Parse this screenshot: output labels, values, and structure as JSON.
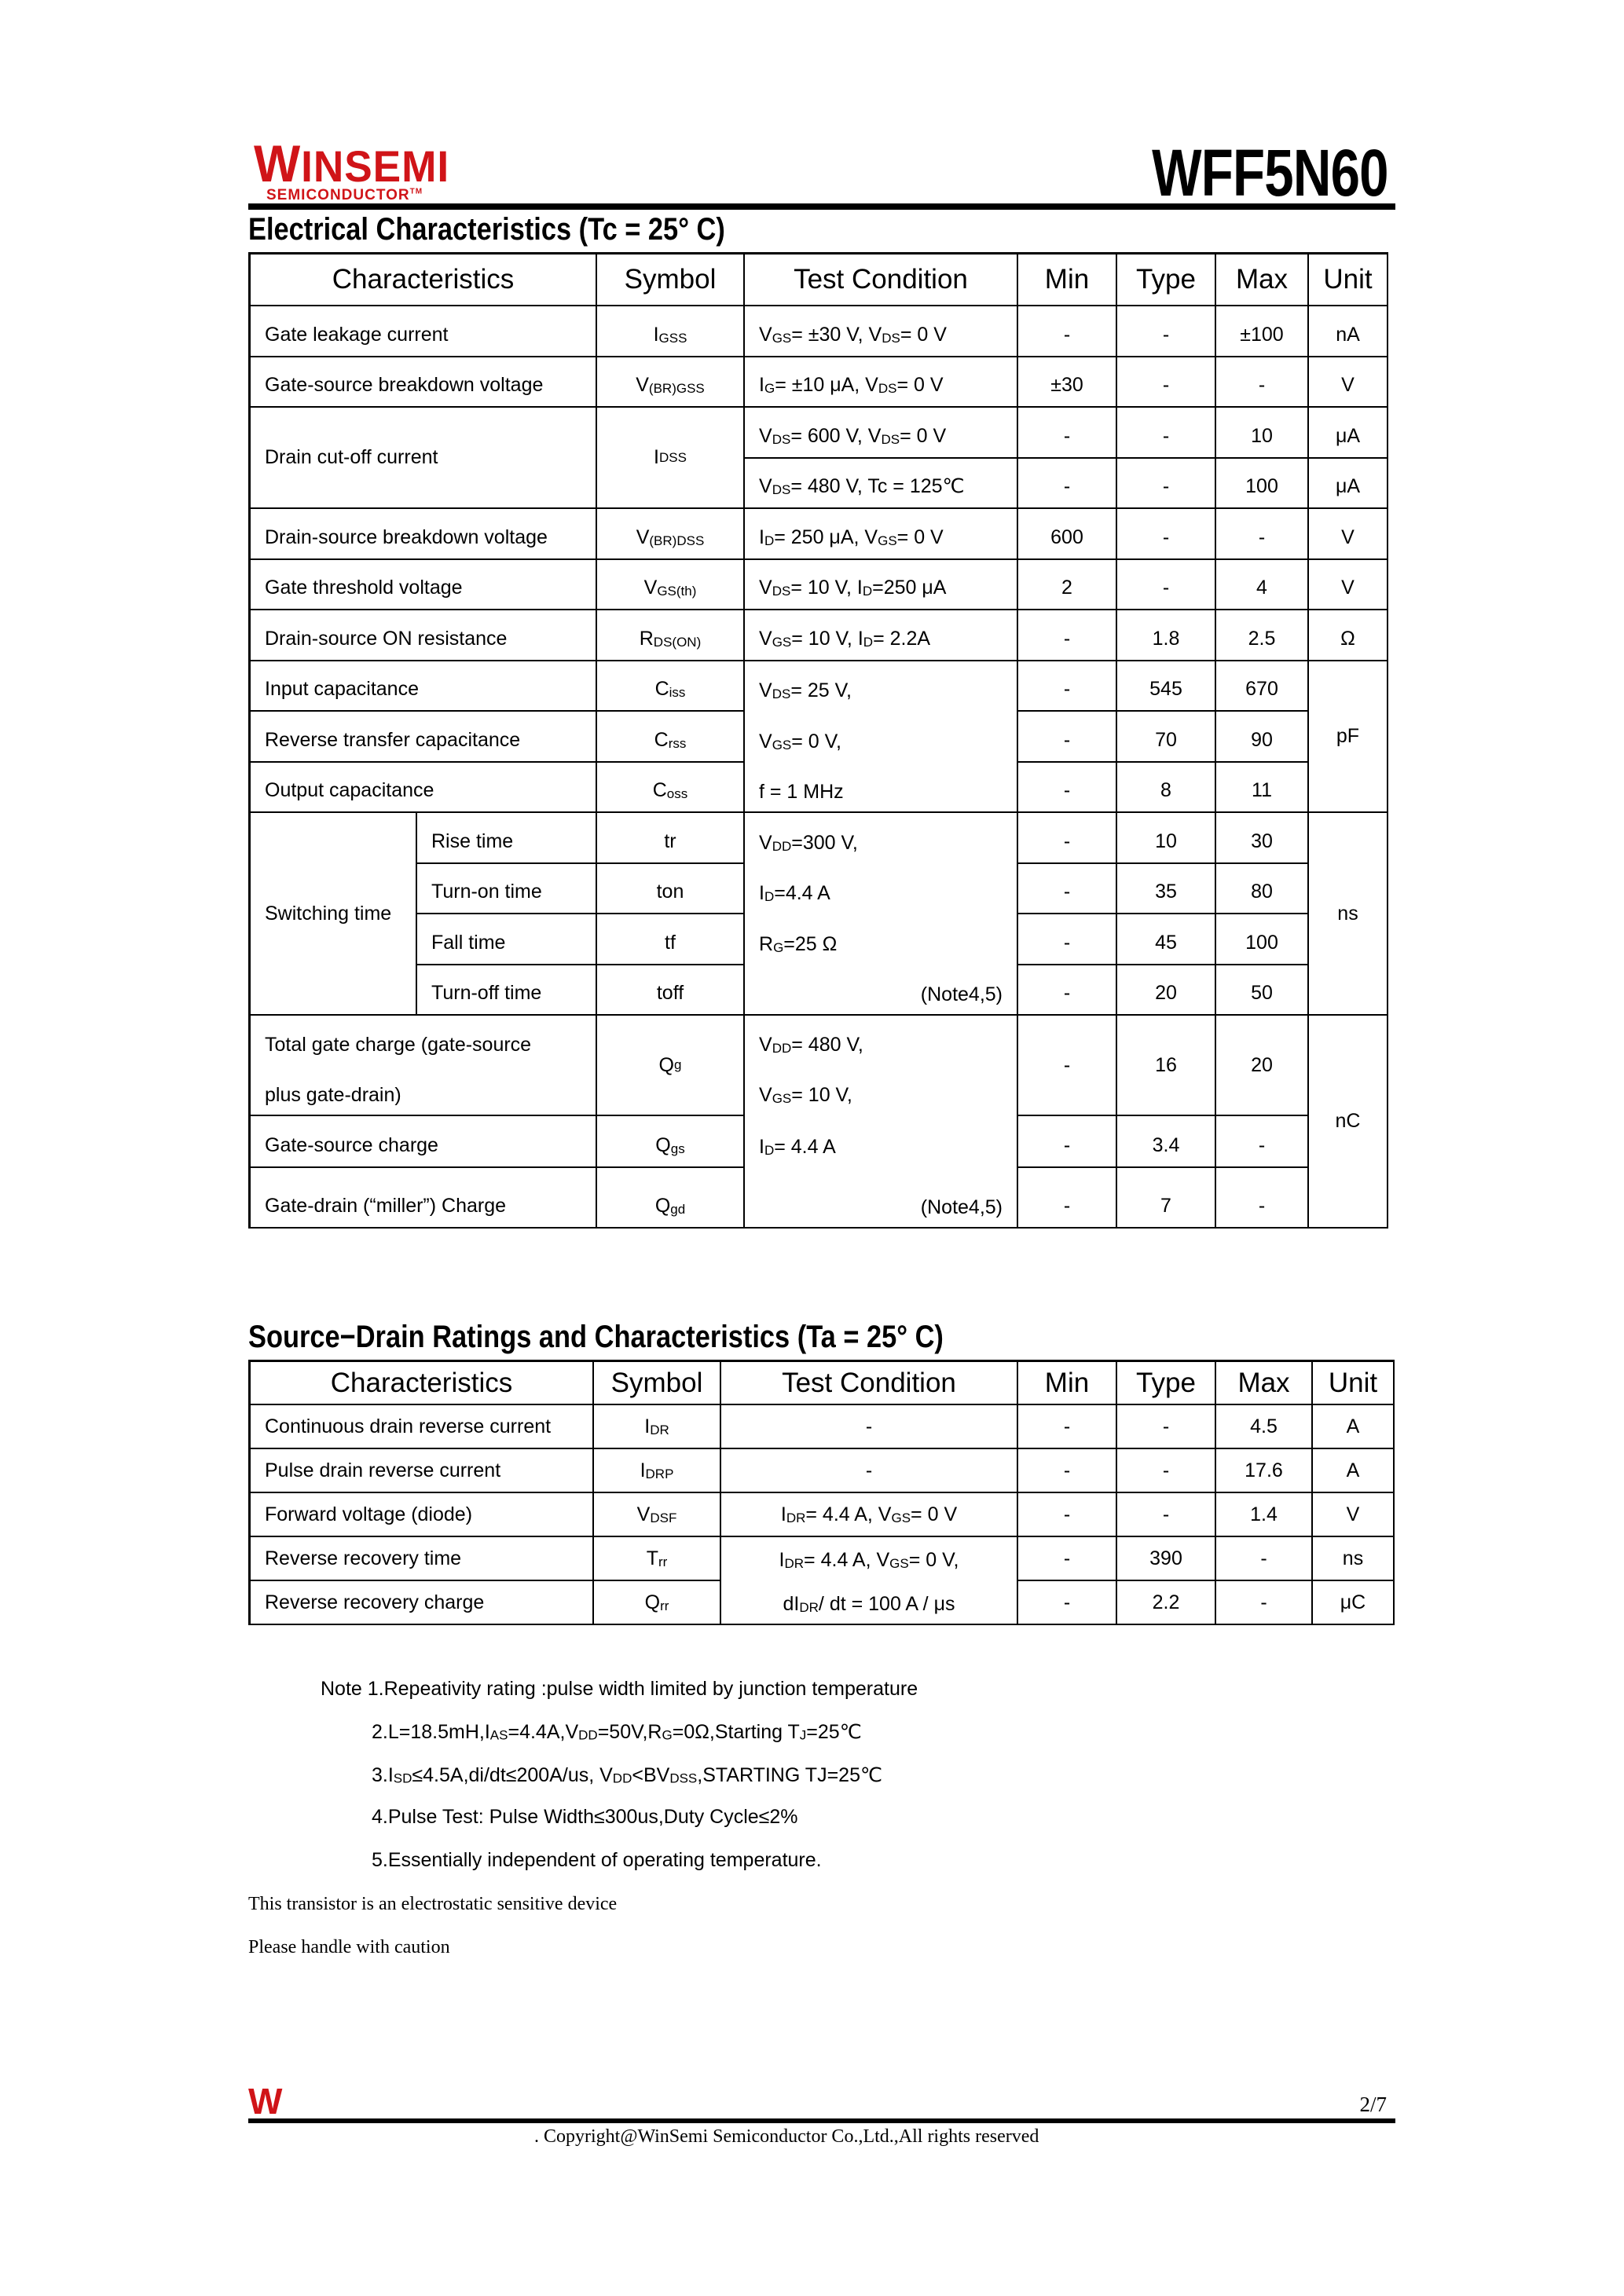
{
  "header": {
    "logo_text": "WINSEMI",
    "logo_subtext": "SEMICONDUCTOR",
    "logo_tm": "TM",
    "part_number": "WFF5N60",
    "brand_color": "#d01418"
  },
  "electrical": {
    "title": "Electrical Characteristics (Tc = 25°  C)",
    "headers": [
      "Characteristics",
      "Symbol",
      "Test Condition",
      "Min",
      "Type",
      "Max",
      "Unit"
    ],
    "rows": [
      {
        "char": "Gate leakage current",
        "sym": "I{GSS}",
        "cond": "V{GS} =  ±30 V, V{DS} = 0 V",
        "min": "-",
        "typ": "-",
        "max": "±100",
        "unit": "nA"
      },
      {
        "char": "Gate-source breakdown voltage",
        "sym": "V{(BR)GSS}",
        "cond": "I{G} =  ±10 μA, V{DS} = 0 V",
        "min": "±30",
        "typ": "-",
        "max": "-",
        "unit": "V"
      },
      {
        "char": "Drain cut-off current",
        "sym": "I{DSS}",
        "cond": "V{DS} = 600 V, V{DS} = 0 V",
        "min": "-",
        "typ": "-",
        "max": "10",
        "unit": "μA"
      },
      {
        "cond": "V{DS} = 480 V, Tc = 125℃",
        "min": "-",
        "typ": "-",
        "max": "100",
        "unit": "μA"
      },
      {
        "char": "Drain-source breakdown voltage",
        "sym": "V{(BR)DSS}",
        "cond": "I{D} = 250 μA, V{GS} = 0 V",
        "min": "600",
        "typ": "-",
        "max": "-",
        "unit": "V"
      },
      {
        "char": "Gate threshold voltage",
        "sym": "V{GS(th)}",
        "cond": "V{DS} = 10 V, I{D} =250 μA",
        "min": "2",
        "typ": "-",
        "max": "4",
        "unit": "V"
      },
      {
        "char": "Drain-source ON resistance",
        "sym": "R{DS(ON)}",
        "cond": "V{GS} = 10 V, I{D} = 2.2A",
        "min": "-",
        "typ": "1.8",
        "max": "2.5",
        "unit": "Ω"
      },
      {
        "char": "Input capacitance",
        "sym": "C{iss}",
        "cond_lines": [
          "V{DS} = 25 V,",
          "V{GS} = 0 V,",
          "f = 1 MHz"
        ],
        "min": "-",
        "typ": "545",
        "max": "670",
        "unit": "pF"
      },
      {
        "char": "Reverse transfer capacitance",
        "sym": "C{rss}",
        "min": "-",
        "typ": "70",
        "max": "90"
      },
      {
        "char": "Output capacitance",
        "sym": "C{oss}",
        "min": "-",
        "typ": "8",
        "max": "11"
      },
      {
        "group": "Switching time",
        "char": "Rise time",
        "sym": "tr",
        "cond_lines": [
          "V{DD} =300 V,",
          "I{D} =4.4 A",
          "R{G}=25 Ω"
        ],
        "cond_note": "(Note4,5)",
        "min": "-",
        "typ": "10",
        "max": "30",
        "unit": "ns"
      },
      {
        "char": "Turn-on time",
        "sym": "ton",
        "min": "-",
        "typ": "35",
        "max": "80"
      },
      {
        "char": "Fall time",
        "sym": "tf",
        "min": "-",
        "typ": "45",
        "max": "100"
      },
      {
        "char": "Turn-off time",
        "sym": "toff",
        "min": "-",
        "typ": "20",
        "max": "50"
      },
      {
        "char": "Total gate charge (gate-source",
        "char2": "plus gate-drain)",
        "sym": "Q{g}",
        "cond_lines": [
          "V{DD} = 480 V,",
          "V{GS} = 10 V,",
          "I{D} = 4.4 A"
        ],
        "cond_note": "(Note4,5)",
        "min": "-",
        "typ": "16",
        "max": "20",
        "unit": "nC"
      },
      {
        "char": "Gate-source charge",
        "sym": "Q{gs}",
        "min": "-",
        "typ": "3.4",
        "max": "-"
      },
      {
        "char": "Gate-drain (“miller”) Charge",
        "sym": "Q{gd}",
        "min": "-",
        "typ": "7",
        "max": "-"
      }
    ]
  },
  "source_drain": {
    "title": "Source−Drain Ratings and Characteristics (Ta = 25°  C)",
    "headers": [
      "Characteristics",
      "Symbol",
      "Test Condition",
      "Min",
      "Type",
      "Max",
      "Unit"
    ],
    "rows": [
      {
        "char": "Continuous drain reverse current",
        "sym": "I{DR}",
        "cond": "-",
        "min": "-",
        "typ": "-",
        "max": "4.5",
        "unit": "A"
      },
      {
        "char": "Pulse drain reverse current",
        "sym": "I{DRP}",
        "cond": "-",
        "min": "-",
        "typ": "-",
        "max": "17.6",
        "unit": "A"
      },
      {
        "char": "Forward voltage (diode)",
        "sym": "V{DSF}",
        "cond": "I{DR} = 4.4 A, V{GS} = 0 V",
        "min": "-",
        "typ": "-",
        "max": "1.4",
        "unit": "V"
      },
      {
        "char": "Reverse recovery time",
        "sym": "T{rr}",
        "cond_lines": [
          "I{DR} = 4.4 A, V{GS} = 0 V,",
          "dI{DR} / dt = 100 A / μs"
        ],
        "min": "-",
        "typ": "390",
        "max": "-",
        "unit": "ns"
      },
      {
        "char": "Reverse recovery charge",
        "sym": "Q{rr}",
        "min": "-",
        "typ": "2.2",
        "max": "-",
        "unit": "μC"
      }
    ]
  },
  "notes": [
    "Note 1.Repeativity rating :pulse width limited by junction temperature",
    "2.L=18.5mH,I{AS}=4.4A,V{DD}=50V,R{G}=0Ω,Starting T{J}=25℃",
    "3.I{SD}≤4.5A,di/dt≤200A/us, V{DD}<BV{DSS},STARTING TJ=25℃",
    "4.Pulse Test: Pulse Width≤300us,Duty Cycle≤2%",
    "5.Essentially independent of operating temperature."
  ],
  "warnings": [
    "This transistor is an electrostatic sensitive device",
    "Please handle with caution"
  ],
  "footer": {
    "logo_text": "W",
    "page": "2/7",
    "copyright": ". Copyright@WinSemi Semiconductor Co.,Ltd.,All rights reserved"
  }
}
